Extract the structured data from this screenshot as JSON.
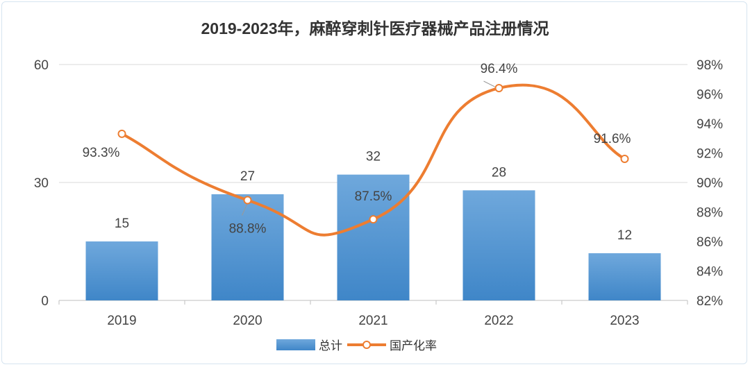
{
  "chart_data": {
    "type": "bar+line",
    "title": "2019-2023年，麻醉穿刺针医疗器械产品注册情况",
    "categories": [
      "2019",
      "2020",
      "2021",
      "2022",
      "2023"
    ],
    "series": [
      {
        "name": "总计",
        "type": "bar",
        "axis": "left",
        "values": [
          15,
          27,
          32,
          28,
          12
        ],
        "labels": [
          "15",
          "27",
          "32",
          "28",
          "12"
        ],
        "color": "#5b9bd5"
      },
      {
        "name": "国产化率",
        "type": "line",
        "axis": "right",
        "values": [
          93.3,
          88.8,
          87.5,
          96.4,
          91.6
        ],
        "labels": [
          "93.3%",
          "88.8%",
          "87.5%",
          "96.4%",
          "91.6%"
        ],
        "color": "#ed7d31"
      }
    ],
    "y_left": {
      "min": 0,
      "max": 60,
      "ticks": [
        "0",
        "30",
        "60"
      ]
    },
    "y_right": {
      "min": 82,
      "max": 98,
      "ticks": [
        "82%",
        "84%",
        "86%",
        "88%",
        "90%",
        "92%",
        "94%",
        "96%",
        "98%"
      ]
    },
    "grid": true,
    "legend": "bottom"
  }
}
